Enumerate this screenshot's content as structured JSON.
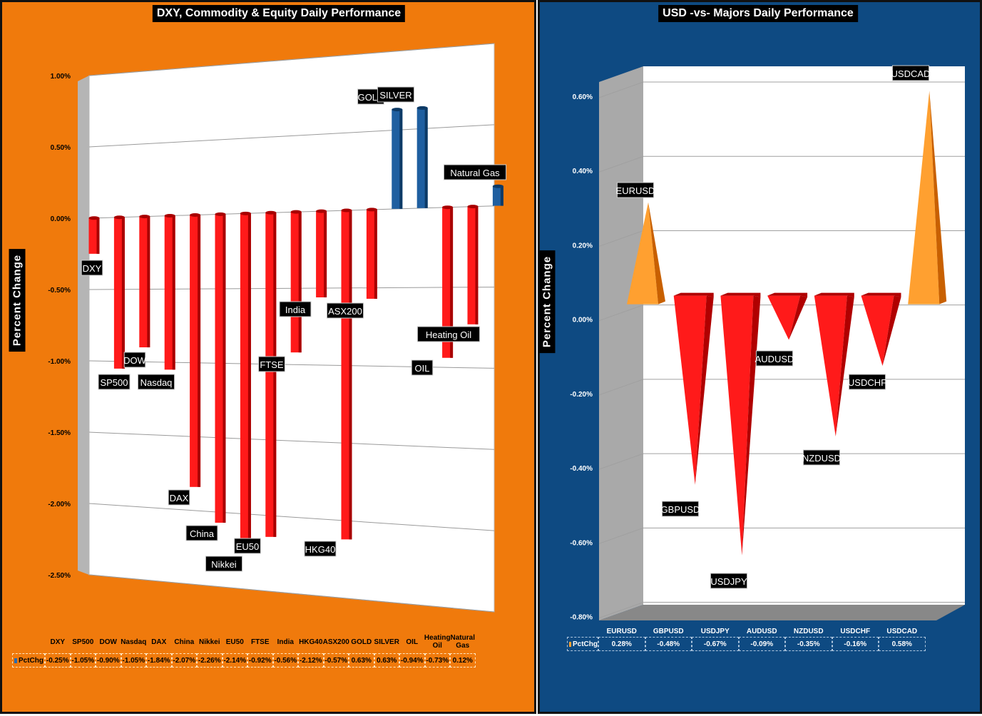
{
  "left": {
    "title": "DXY, Commodity & Equity Daily Performance",
    "ylabel": "Percent Change",
    "legend_marker_color": "#2b6cb0",
    "series_name": "PctChg",
    "colors": {
      "neg": "#ff1a1a",
      "neg_dark": "#a80000",
      "pos": "#1f5fa0",
      "pos_dark": "#0d3a66"
    },
    "table_headers": [
      "DXY",
      "SP500",
      "DOW",
      "Nasdaq",
      "DAX",
      "China",
      "Nikkei",
      "EU50",
      "FTSE",
      "India",
      "HKG40",
      "ASX200",
      "GOLD",
      "SILVER",
      "OIL",
      "Heating Oil",
      "Natural Gas"
    ],
    "table_values": [
      "-0.25%",
      "-1.05%",
      "-0.90%",
      "-1.05%",
      "-1.84%",
      "-2.07%",
      "-2.26%",
      "-2.14%",
      "-0.92%",
      "-0.56%",
      "-2.12%",
      "-0.57%",
      "0.63%",
      "0.63%",
      "-0.94%",
      "-0.73%",
      "0.12%"
    ]
  },
  "right": {
    "title": "USD -vs- Majors Daily Performance",
    "ylabel": "Percent Change",
    "series_name": "PctChg",
    "colors": {
      "neg": "#ff1a1a",
      "neg_dark": "#b00000",
      "pos": "#ffa030",
      "pos_dark": "#c86000"
    },
    "table_headers": [
      "EURUSD",
      "GBPUSD",
      "USDJPY",
      "AUDUSD",
      "NZDUSD",
      "USDCHF",
      "USDCAD"
    ],
    "table_values": [
      "0.28%",
      "-0.48%",
      "-0.67%",
      "-0.09%",
      "-0.35%",
      "-0.16%",
      "0.58%"
    ]
  },
  "chart_data": [
    {
      "type": "bar",
      "title": "DXY, Commodity & Equity Daily Performance",
      "ylabel": "Percent Change",
      "ylim": [
        -2.5,
        1.0
      ],
      "yticks": [
        "1.00%",
        "0.50%",
        "0.00%",
        "-0.50%",
        "-1.00%",
        "-1.50%",
        "-2.00%",
        "-2.50%"
      ],
      "categories": [
        "DXY",
        "SP500",
        "DOW",
        "Nasdaq",
        "DAX",
        "China",
        "Nikkei",
        "EU50",
        "FTSE",
        "India",
        "HKG40",
        "ASX200",
        "GOLD",
        "SILVER",
        "OIL",
        "Heating Oil",
        "Natural Gas"
      ],
      "series": [
        {
          "name": "PctChg",
          "values": [
            -0.25,
            -1.05,
            -0.9,
            -1.05,
            -1.84,
            -2.07,
            -2.26,
            -2.14,
            -0.92,
            -0.56,
            -2.12,
            -0.57,
            0.63,
            0.63,
            -0.94,
            -0.73,
            0.12
          ]
        }
      ],
      "grid": true
    },
    {
      "type": "bar",
      "title": "USD -vs- Majors Daily Performance",
      "ylabel": "Percent Change",
      "ylim": [
        -0.8,
        0.6
      ],
      "yticks": [
        "0.60%",
        "0.40%",
        "0.20%",
        "0.00%",
        "-0.20%",
        "-0.40%",
        "-0.60%",
        "-0.80%"
      ],
      "categories": [
        "EURUSD",
        "GBPUSD",
        "USDJPY",
        "AUDUSD",
        "NZDUSD",
        "USDCHF",
        "USDCAD"
      ],
      "series": [
        {
          "name": "PctChg",
          "values": [
            0.28,
            -0.48,
            -0.67,
            -0.09,
            -0.35,
            -0.16,
            0.58
          ]
        }
      ],
      "grid": true
    }
  ]
}
